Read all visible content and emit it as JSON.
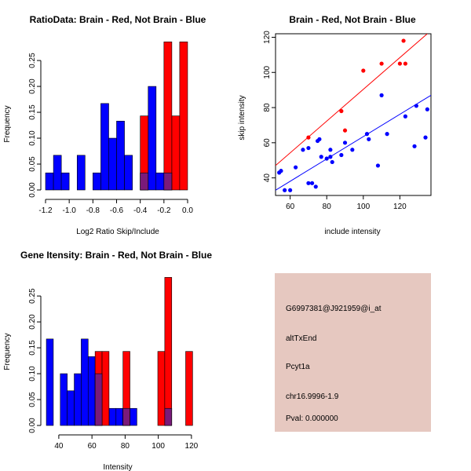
{
  "colors": {
    "red": "#ff0000",
    "blue": "#0000ff",
    "overlap": "#7a1a7a",
    "panel": "#e6c8c0",
    "pval": "#cc0000"
  },
  "chart_data": [
    {
      "type": "bar",
      "subtype": "histogram",
      "title": "RatioData: Brain - Red, Not Brain - Blue",
      "xlabel": "Log2 Ratio Skip/Include",
      "ylabel": "Frequency",
      "xlim": [
        -1.2,
        0.0
      ],
      "ylim": [
        0,
        0.285
      ],
      "xticks": [
        -1.2,
        -1.0,
        -0.8,
        -0.6,
        -0.4,
        -0.2,
        0.0
      ],
      "xtick_labels": [
        "-1.2",
        "-1.0",
        "-0.8",
        "-0.6",
        "-0.4",
        "-0.2",
        "0.0"
      ],
      "yticks": [
        0,
        0.05,
        0.1,
        0.15,
        0.2,
        0.25
      ],
      "ytick_labels": [
        "0.00",
        "0.05",
        "0.10",
        "0.15",
        "0.20",
        "0.25"
      ],
      "bin_width": 0.0667,
      "series": [
        {
          "name": "Not Brain",
          "color": "#0000ff",
          "bins": [
            [
              -1.2,
              0.033
            ],
            [
              -1.133,
              0.067
            ],
            [
              -1.067,
              0.033
            ],
            [
              -0.933,
              0.067
            ],
            [
              -0.8,
              0.033
            ],
            [
              -0.733,
              0.167
            ],
            [
              -0.667,
              0.1
            ],
            [
              -0.6,
              0.133
            ],
            [
              -0.533,
              0.067
            ],
            [
              -0.4,
              0.033
            ],
            [
              -0.333,
              0.2
            ],
            [
              -0.267,
              0.033
            ],
            [
              -0.2,
              0.033
            ]
          ]
        },
        {
          "name": "Brain",
          "color": "#ff0000",
          "bins": [
            [
              -0.4,
              0.143
            ],
            [
              -0.2,
              0.286
            ],
            [
              -0.133,
              0.143
            ],
            [
              -0.067,
              0.286
            ]
          ]
        }
      ]
    },
    {
      "type": "scatter",
      "title": "Brain - Red, Not Brain - Blue",
      "xlabel": "include intensity",
      "ylabel": "skip intensity",
      "xlim": [
        52,
        137
      ],
      "ylim": [
        30,
        122
      ],
      "xticks": [
        60,
        80,
        100,
        120
      ],
      "xtick_labels": [
        "60",
        "80",
        "100",
        "120"
      ],
      "yticks": [
        40,
        60,
        80,
        100,
        120
      ],
      "ytick_labels": [
        "40",
        "60",
        "80",
        "100",
        "120"
      ],
      "series": [
        {
          "name": "Brain",
          "color": "#ff0000",
          "points": [
            [
              70,
              63
            ],
            [
              88,
              78
            ],
            [
              90,
              67
            ],
            [
              100,
              101
            ],
            [
              110,
              105
            ],
            [
              120,
              105
            ],
            [
              122,
              118
            ],
            [
              123,
              105
            ]
          ],
          "fit": [
            [
              52,
              47
            ],
            [
              135,
              122
            ]
          ]
        },
        {
          "name": "Not Brain",
          "color": "#0000ff",
          "points": [
            [
              54,
              43
            ],
            [
              55,
              44
            ],
            [
              57,
              33
            ],
            [
              60,
              33
            ],
            [
              63,
              46
            ],
            [
              67,
              56
            ],
            [
              70,
              57
            ],
            [
              70,
              37
            ],
            [
              72,
              37
            ],
            [
              74,
              35
            ],
            [
              75,
              61
            ],
            [
              76,
              62
            ],
            [
              77,
              52
            ],
            [
              80,
              51
            ],
            [
              82,
              52
            ],
            [
              82,
              56
            ],
            [
              83,
              49
            ],
            [
              88,
              53
            ],
            [
              90,
              60
            ],
            [
              94,
              56
            ],
            [
              102,
              65
            ],
            [
              103,
              62
            ],
            [
              108,
              47
            ],
            [
              110,
              87
            ],
            [
              113,
              65
            ],
            [
              123,
              75
            ],
            [
              128,
              58
            ],
            [
              129,
              81
            ],
            [
              134,
              63
            ],
            [
              135,
              79
            ]
          ],
          "fit": [
            [
              52,
              33
            ],
            [
              137,
              87
            ]
          ]
        }
      ]
    },
    {
      "type": "bar",
      "subtype": "histogram",
      "title": "Gene Itensity: Brain - Red, Not Brain - Blue",
      "xlabel": "Intensity",
      "ylabel": "Frequency",
      "xlim": [
        32,
        121
      ],
      "ylim": [
        0,
        0.285
      ],
      "xticks": [
        40,
        60,
        80,
        100,
        120
      ],
      "xtick_labels": [
        "40",
        "60",
        "80",
        "100",
        "120"
      ],
      "yticks": [
        0,
        0.05,
        0.1,
        0.15,
        0.2,
        0.25
      ],
      "ytick_labels": [
        "0.00",
        "0.05",
        "0.10",
        "0.15",
        "0.20",
        "0.25"
      ],
      "bin_width": 4.2,
      "series": [
        {
          "name": "Not Brain",
          "color": "#0000ff",
          "bins": [
            [
              32.5,
              0.167
            ],
            [
              40.9,
              0.1
            ],
            [
              45.1,
              0.067
            ],
            [
              49.3,
              0.1
            ],
            [
              53.5,
              0.167
            ],
            [
              57.7,
              0.133
            ],
            [
              61.9,
              0.1
            ],
            [
              70.3,
              0.033
            ],
            [
              74.5,
              0.033
            ],
            [
              78.7,
              0.033
            ],
            [
              82.9,
              0.033
            ],
            [
              103.9,
              0.033
            ]
          ]
        },
        {
          "name": "Brain",
          "color": "#ff0000",
          "bins": [
            [
              61.9,
              0.143
            ],
            [
              66.1,
              0.143
            ],
            [
              78.7,
              0.143
            ],
            [
              99.7,
              0.143
            ],
            [
              103.9,
              0.286
            ],
            [
              116.5,
              0.143
            ]
          ]
        }
      ]
    }
  ],
  "info_panel": {
    "probe_id": "G6997381@J921959@i_at",
    "event_type": "altTxEnd",
    "gene": "Pcyt1a",
    "location": "chr16.9996-1.9",
    "pval": "Pval: 0.000000"
  }
}
